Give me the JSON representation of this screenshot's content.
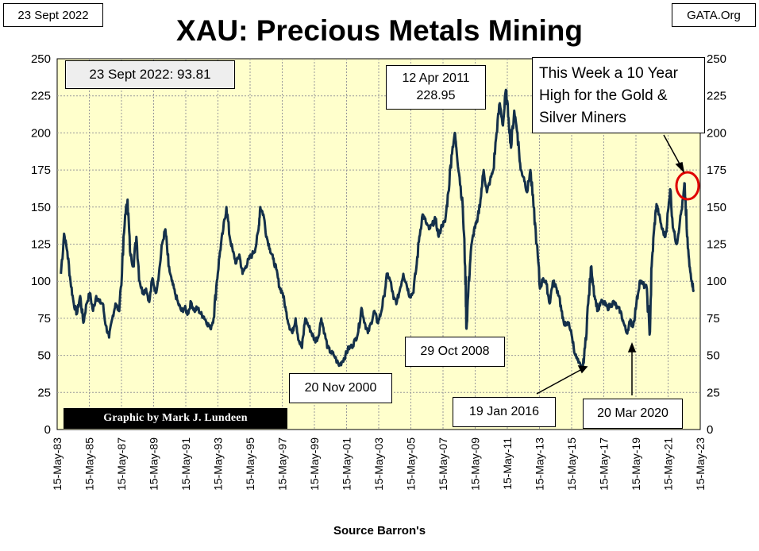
{
  "header": {
    "date_label": "23 Sept 2022",
    "site_label": "GATA.Org",
    "title": "XAU: Precious Metals Mining"
  },
  "footer": {
    "source": "Source Barron's",
    "credit": "Graphic by Mark J. Lundeen"
  },
  "colors": {
    "plot_background": "#ffffcc",
    "series_line": "#14304a",
    "gridline": "#9a9a9a",
    "highlight_circle": "#e00000"
  },
  "chart_data": {
    "type": "line",
    "title": "XAU: Precious Metals Mining",
    "xlabel": "Source Barron's",
    "ylabel": "",
    "ylim": [
      0,
      250
    ],
    "y_ticks": [
      0,
      25,
      50,
      75,
      100,
      125,
      150,
      175,
      200,
      225,
      250
    ],
    "x_range": [
      1983.37,
      2023.37
    ],
    "x_ticks": [
      "15-May-83",
      "15-May-85",
      "15-May-87",
      "15-May-89",
      "15-May-91",
      "15-May-93",
      "15-May-95",
      "15-May-97",
      "15-May-99",
      "15-May-01",
      "15-May-03",
      "15-May-05",
      "15-May-07",
      "15-May-09",
      "15-May-11",
      "15-May-13",
      "15-May-15",
      "15-May-17",
      "15-May-19",
      "15-May-21",
      "15-May-23"
    ],
    "grid": true,
    "y_axis_right_mirror": true,
    "series": [
      {
        "points": [
          [
            1983.6,
            105
          ],
          [
            1983.8,
            132
          ],
          [
            1984.0,
            120
          ],
          [
            1984.2,
            100
          ],
          [
            1984.4,
            85
          ],
          [
            1984.6,
            78
          ],
          [
            1984.8,
            90
          ],
          [
            1985.0,
            72
          ],
          [
            1985.2,
            85
          ],
          [
            1985.4,
            92
          ],
          [
            1985.6,
            80
          ],
          [
            1985.8,
            90
          ],
          [
            1986.0,
            86
          ],
          [
            1986.2,
            85
          ],
          [
            1986.4,
            70
          ],
          [
            1986.6,
            62
          ],
          [
            1986.8,
            75
          ],
          [
            1987.0,
            85
          ],
          [
            1987.2,
            80
          ],
          [
            1987.4,
            105
          ],
          [
            1987.6,
            145
          ],
          [
            1987.75,
            155
          ],
          [
            1987.9,
            120
          ],
          [
            1988.1,
            110
          ],
          [
            1988.3,
            130
          ],
          [
            1988.5,
            100
          ],
          [
            1988.7,
            92
          ],
          [
            1988.9,
            95
          ],
          [
            1989.1,
            86
          ],
          [
            1989.3,
            102
          ],
          [
            1989.5,
            92
          ],
          [
            1989.7,
            105
          ],
          [
            1989.9,
            125
          ],
          [
            1990.1,
            135
          ],
          [
            1990.3,
            110
          ],
          [
            1990.5,
            100
          ],
          [
            1990.7,
            92
          ],
          [
            1990.9,
            85
          ],
          [
            1991.1,
            80
          ],
          [
            1991.3,
            82
          ],
          [
            1991.5,
            78
          ],
          [
            1991.7,
            86
          ],
          [
            1991.9,
            80
          ],
          [
            1992.1,
            82
          ],
          [
            1992.3,
            78
          ],
          [
            1992.5,
            76
          ],
          [
            1992.7,
            72
          ],
          [
            1992.9,
            68
          ],
          [
            1993.1,
            75
          ],
          [
            1993.3,
            100
          ],
          [
            1993.5,
            120
          ],
          [
            1993.7,
            135
          ],
          [
            1993.9,
            150
          ],
          [
            1994.1,
            130
          ],
          [
            1994.3,
            120
          ],
          [
            1994.5,
            112
          ],
          [
            1994.7,
            118
          ],
          [
            1994.9,
            105
          ],
          [
            1995.1,
            110
          ],
          [
            1995.3,
            115
          ],
          [
            1995.5,
            118
          ],
          [
            1995.7,
            122
          ],
          [
            1995.9,
            135
          ],
          [
            1996.0,
            150
          ],
          [
            1996.2,
            145
          ],
          [
            1996.4,
            130
          ],
          [
            1996.6,
            122
          ],
          [
            1996.8,
            115
          ],
          [
            1997.0,
            108
          ],
          [
            1997.2,
            96
          ],
          [
            1997.4,
            92
          ],
          [
            1997.6,
            80
          ],
          [
            1997.8,
            70
          ],
          [
            1998.0,
            65
          ],
          [
            1998.2,
            75
          ],
          [
            1998.4,
            60
          ],
          [
            1998.6,
            55
          ],
          [
            1998.8,
            75
          ],
          [
            1999.0,
            70
          ],
          [
            1999.2,
            65
          ],
          [
            1999.4,
            60
          ],
          [
            1999.6,
            62
          ],
          [
            1999.8,
            75
          ],
          [
            2000.0,
            65
          ],
          [
            2000.2,
            55
          ],
          [
            2000.4,
            52
          ],
          [
            2000.6,
            50
          ],
          [
            2000.9,
            43
          ],
          [
            2001.1,
            46
          ],
          [
            2001.3,
            50
          ],
          [
            2001.5,
            55
          ],
          [
            2001.7,
            56
          ],
          [
            2001.9,
            60
          ],
          [
            2002.1,
            66
          ],
          [
            2002.3,
            82
          ],
          [
            2002.5,
            72
          ],
          [
            2002.7,
            65
          ],
          [
            2002.9,
            72
          ],
          [
            2003.1,
            80
          ],
          [
            2003.3,
            72
          ],
          [
            2003.5,
            78
          ],
          [
            2003.7,
            90
          ],
          [
            2003.9,
            105
          ],
          [
            2004.1,
            100
          ],
          [
            2004.3,
            88
          ],
          [
            2004.5,
            86
          ],
          [
            2004.7,
            95
          ],
          [
            2004.9,
            105
          ],
          [
            2005.1,
            98
          ],
          [
            2005.3,
            90
          ],
          [
            2005.5,
            92
          ],
          [
            2005.7,
            108
          ],
          [
            2005.9,
            130
          ],
          [
            2006.1,
            145
          ],
          [
            2006.3,
            140
          ],
          [
            2006.5,
            135
          ],
          [
            2006.7,
            138
          ],
          [
            2006.9,
            142
          ],
          [
            2007.1,
            130
          ],
          [
            2007.3,
            138
          ],
          [
            2007.5,
            140
          ],
          [
            2007.7,
            160
          ],
          [
            2007.9,
            185
          ],
          [
            2008.1,
            200
          ],
          [
            2008.2,
            190
          ],
          [
            2008.4,
            170
          ],
          [
            2008.6,
            150
          ],
          [
            2008.75,
            110
          ],
          [
            2008.83,
            68
          ],
          [
            2008.95,
            95
          ],
          [
            2009.1,
            120
          ],
          [
            2009.3,
            135
          ],
          [
            2009.5,
            140
          ],
          [
            2009.7,
            155
          ],
          [
            2009.9,
            175
          ],
          [
            2010.1,
            160
          ],
          [
            2010.3,
            168
          ],
          [
            2010.5,
            175
          ],
          [
            2010.7,
            200
          ],
          [
            2010.9,
            220
          ],
          [
            2011.1,
            205
          ],
          [
            2011.28,
            229
          ],
          [
            2011.45,
            210
          ],
          [
            2011.6,
            190
          ],
          [
            2011.8,
            215
          ],
          [
            2012.0,
            200
          ],
          [
            2012.2,
            175
          ],
          [
            2012.4,
            170
          ],
          [
            2012.6,
            160
          ],
          [
            2012.8,
            175
          ],
          [
            2013.0,
            150
          ],
          [
            2013.2,
            125
          ],
          [
            2013.4,
            95
          ],
          [
            2013.6,
            102
          ],
          [
            2013.8,
            98
          ],
          [
            2014.0,
            85
          ],
          [
            2014.2,
            100
          ],
          [
            2014.4,
            96
          ],
          [
            2014.6,
            90
          ],
          [
            2014.8,
            75
          ],
          [
            2015.0,
            70
          ],
          [
            2015.2,
            72
          ],
          [
            2015.4,
            62
          ],
          [
            2015.6,
            50
          ],
          [
            2015.8,
            45
          ],
          [
            2016.05,
            40
          ],
          [
            2016.2,
            55
          ],
          [
            2016.4,
            85
          ],
          [
            2016.6,
            110
          ],
          [
            2016.8,
            90
          ],
          [
            2017.0,
            80
          ],
          [
            2017.2,
            86
          ],
          [
            2017.4,
            85
          ],
          [
            2017.6,
            82
          ],
          [
            2017.8,
            84
          ],
          [
            2018.0,
            86
          ],
          [
            2018.2,
            82
          ],
          [
            2018.4,
            80
          ],
          [
            2018.6,
            72
          ],
          [
            2018.8,
            65
          ],
          [
            2019.0,
            73
          ],
          [
            2019.2,
            70
          ],
          [
            2019.4,
            85
          ],
          [
            2019.6,
            100
          ],
          [
            2019.8,
            98
          ],
          [
            2020.05,
            95
          ],
          [
            2020.22,
            64
          ],
          [
            2020.35,
            110
          ],
          [
            2020.5,
            135
          ],
          [
            2020.65,
            152
          ],
          [
            2020.8,
            145
          ],
          [
            2021.0,
            135
          ],
          [
            2021.2,
            130
          ],
          [
            2021.4,
            150
          ],
          [
            2021.5,
            162
          ],
          [
            2021.7,
            135
          ],
          [
            2021.9,
            125
          ],
          [
            2022.1,
            140
          ],
          [
            2022.3,
            155
          ],
          [
            2022.4,
            166
          ],
          [
            2022.55,
            130
          ],
          [
            2022.7,
            110
          ],
          [
            2022.85,
            100
          ],
          [
            2022.96,
            94
          ]
        ]
      }
    ],
    "annotations": [
      {
        "id": "current",
        "text": "23 Sept 2022:  93.81"
      },
      {
        "id": "peak_2011",
        "lines": [
          "12 Apr 2011",
          "228.95"
        ]
      },
      {
        "id": "ten_year_high",
        "lines": [
          "This Week a 10 Year",
          "High for the Gold &",
          "Silver Miners"
        ]
      },
      {
        "id": "low_2000",
        "text": "20 Nov 2000"
      },
      {
        "id": "low_2008",
        "text": "29 Oct 2008"
      },
      {
        "id": "low_2016",
        "text": "19 Jan 2016"
      },
      {
        "id": "low_2020",
        "text": "20 Mar 2020"
      }
    ]
  }
}
